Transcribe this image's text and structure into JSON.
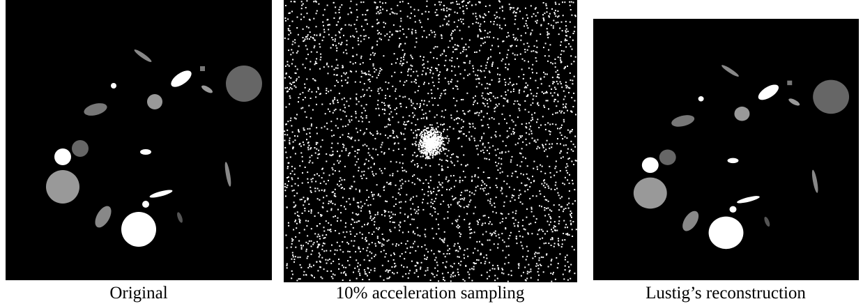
{
  "panels": [
    {
      "caption": "Original"
    },
    {
      "caption": "10% acceleration sampling"
    },
    {
      "caption": "Lustig’s reconstruction"
    }
  ]
}
